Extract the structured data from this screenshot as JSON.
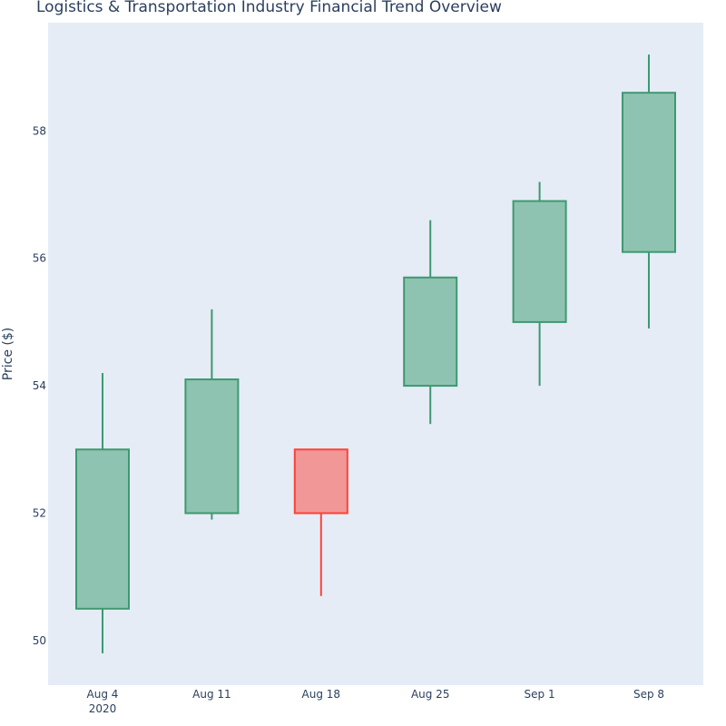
{
  "chart_data": {
    "type": "candlestick",
    "title": "Logistics & Transportation Industry Financial Trend Overview",
    "ylabel": "Price ($)",
    "xlabel": "",
    "x_year_label": "2020",
    "ylim": [
      49.3,
      59.7
    ],
    "y_ticks": [
      50,
      52,
      54,
      56,
      58
    ],
    "grid": false,
    "legend": "none",
    "colors": {
      "plot_bg": "#e5ecf6",
      "increasing_line": "#3d9970",
      "increasing_fill": "#8fc3b1",
      "decreasing_line": "#ff4136",
      "decreasing_fill": "#f29797",
      "text": "#2a3f5f"
    },
    "candles": [
      {
        "date": "Aug 4",
        "open": 50.5,
        "high": 54.2,
        "low": 49.8,
        "close": 53.0
      },
      {
        "date": "Aug 11",
        "open": 52.0,
        "high": 55.2,
        "low": 51.9,
        "close": 54.1
      },
      {
        "date": "Aug 18",
        "open": 53.0,
        "high": 53.0,
        "low": 50.7,
        "close": 52.0
      },
      {
        "date": "Aug 25",
        "open": 54.0,
        "high": 56.6,
        "low": 53.4,
        "close": 55.7
      },
      {
        "date": "Sep 1",
        "open": 55.0,
        "high": 57.2,
        "low": 54.0,
        "close": 56.9
      },
      {
        "date": "Sep 8",
        "open": 56.1,
        "high": 59.2,
        "low": 54.9,
        "close": 58.6
      }
    ]
  }
}
